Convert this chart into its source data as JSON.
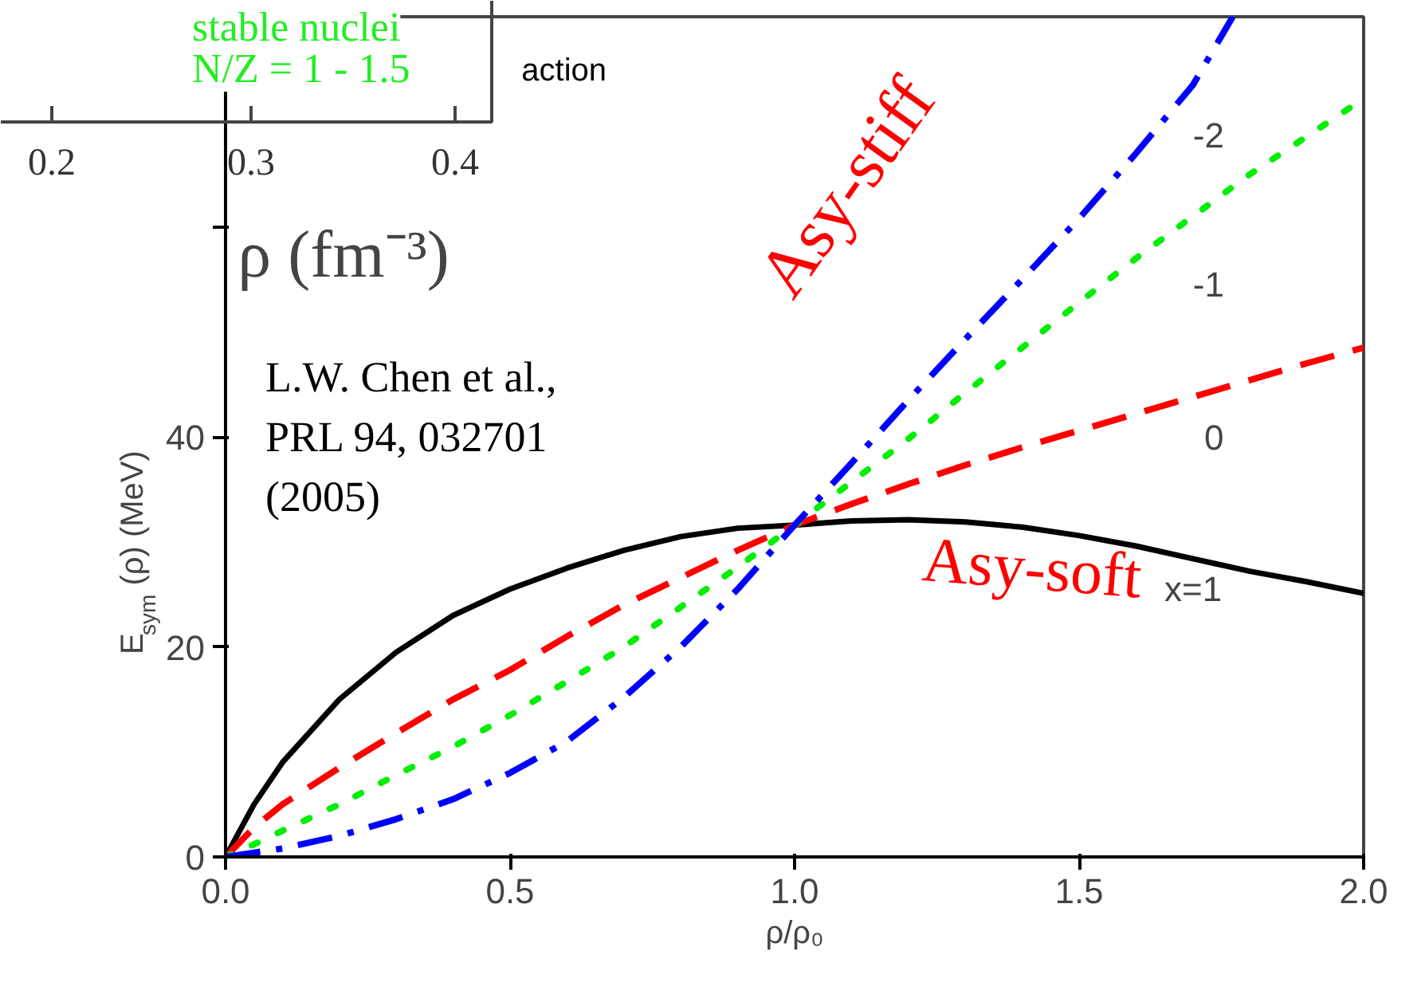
{
  "chart_data": [
    {
      "type": "line",
      "xlabel": "ρ/ρ₀",
      "ylabel": "E$_{sym}$ (ρ) (MeV)",
      "x": [
        0,
        0.05,
        0.1,
        0.2,
        0.3,
        0.4,
        0.5,
        0.6,
        0.7,
        0.8,
        0.9,
        1.0,
        1.1,
        1.2,
        1.3,
        1.4,
        1.5,
        1.6,
        1.7,
        1.8,
        1.9,
        2.0
      ],
      "series": [
        {
          "name": "x=1",
          "color": "#000000",
          "line_style": "solid",
          "values": [
            0,
            5,
            9,
            15,
            19.5,
            23,
            25.5,
            27.5,
            29.2,
            30.5,
            31.3,
            31.6,
            32,
            32.1,
            31.9,
            31.4,
            30.6,
            29.6,
            28.4,
            27.2,
            26.2,
            25.1
          ]
        },
        {
          "name": "0",
          "color": "#ff0000",
          "line_style": "dashed",
          "values": [
            0,
            2.8,
            5,
            8.5,
            11.8,
            15,
            17.8,
            21,
            24,
            26.6,
            29.2,
            31.6,
            33.6,
            35.5,
            37.3,
            39,
            40.6,
            42.2,
            43.8,
            45.4,
            47,
            48.5
          ]
        },
        {
          "name": "-1",
          "color": "#00ee00",
          "line_style": "dotted",
          "values": [
            0,
            1.2,
            2.5,
            5,
            7.8,
            10.5,
            13.5,
            16.7,
            20,
            23.8,
            27.6,
            31.6,
            35.7,
            39.8,
            44.2,
            48.5,
            52.8,
            57,
            61,
            65,
            68.6,
            72.2
          ]
        },
        {
          "name": "-2",
          "color": "#0000ff",
          "line_style": "dashdot",
          "x": [
            0,
            0.05,
            0.1,
            0.2,
            0.3,
            0.4,
            0.5,
            0.6,
            0.7,
            0.8,
            0.9,
            1.0,
            1.1,
            1.2,
            1.3,
            1.4,
            1.5,
            1.6,
            1.7,
            1.77
          ],
          "values": [
            0,
            0.4,
            0.8,
            2,
            3.6,
            5.5,
            8,
            11,
            15.2,
            20,
            25.5,
            31.6,
            37.5,
            43.5,
            49.3,
            55,
            60.8,
            67,
            73.5,
            80
          ]
        }
      ],
      "xlim": [
        0,
        2.0
      ],
      "ylim": [
        0,
        80
      ],
      "xticks": [
        {
          "value": 0,
          "label": "0.0"
        },
        {
          "value": 0.5,
          "label": "0.5"
        },
        {
          "value": 1.0,
          "label": "1.0"
        },
        {
          "value": 1.5,
          "label": "1.5"
        },
        {
          "value": 2.0,
          "label": "2.0"
        }
      ],
      "yticks": [
        0,
        20,
        40,
        {
          "value": 60,
          "label": null
        }
      ],
      "grid": false,
      "legend": false,
      "annotations": [
        "L.W. Chen et al.,\nPRL 94, 032701\n(2005)",
        "Asy-stiff",
        "Asy-soft",
        "action"
      ]
    },
    {
      "type": "other",
      "xlabel": "ρ (fm⁻³)",
      "annotations": [
        "stable nuclei",
        "N/Z = 1 - 1.5",
        "0.2",
        "0.3",
        "0.4"
      ]
    }
  ]
}
